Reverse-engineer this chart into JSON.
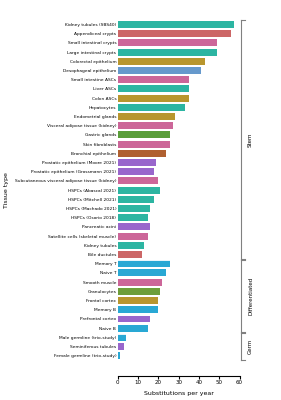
{
  "labels": [
    "Kidney tubules (SBS40)",
    "Appendiceal crypts",
    "Small intestinal crypts",
    "Large intestinal crypts",
    "Colorectal epithelium",
    "Desophageal epithelium",
    "Small intestine ASCs",
    "Liver ASCs",
    "Colon ASCs",
    "Hepatocytes",
    "Endometrial glands",
    "Visceral adipose tissue (kidney)",
    "Gastric glands",
    "Skin fibroblasts",
    "Bronchial epithelium",
    "Prostatic epithelium (Moore 2021)",
    "Prostatic epithelium (Grossmann 2021)",
    "Subcutaneous visceral adipose tissue (kidney)",
    "HSPCs (Abascal 2021)",
    "HSPCs (Mitchell 2021)",
    "HSPCs (Machado 2021)",
    "HSPCs (Osorio 2018)",
    "Pancreatic acini",
    "Satellite cells (skeletal muscle)",
    "Kidney tubules",
    "Bile ductules",
    "Memory T",
    "Naive T",
    "Smooth muscle",
    "Granulocytes",
    "Frontal cortex",
    "Memory B",
    "Prefrontal cortex",
    "Naive B",
    "Male germline (trio-study)",
    "Seminiferous tubules",
    "Female germline (trio-study)"
  ],
  "values": [
    57,
    56,
    49,
    49,
    43,
    41,
    35,
    35,
    35,
    33,
    28,
    27,
    26,
    26,
    24,
    19,
    18,
    20,
    21,
    18,
    16,
    15,
    16,
    15,
    13,
    12,
    26,
    24,
    22,
    21,
    20,
    20,
    16,
    15,
    4,
    3,
    1
  ],
  "colors": [
    "#2cb5a2",
    "#cc6666",
    "#cc6699",
    "#2cb5a2",
    "#b8962e",
    "#6699cc",
    "#cc6699",
    "#2cb5a2",
    "#b8962e",
    "#2cb5a2",
    "#b8962e",
    "#cc6699",
    "#5a9e3a",
    "#cc6699",
    "#b06030",
    "#9966cc",
    "#9966cc",
    "#cc6699",
    "#2cb5a2",
    "#2cb5a2",
    "#2cb5a2",
    "#2cb5a2",
    "#9966cc",
    "#cc6699",
    "#2cb5a2",
    "#cc6666",
    "#29a8d4",
    "#29a8d4",
    "#cc6699",
    "#6d9e3a",
    "#b8962e",
    "#29a8d4",
    "#9966cc",
    "#29a8d4",
    "#29a8d4",
    "#9966cc",
    "#29a8d4"
  ],
  "section_labels": [
    "Stem",
    "Differentiated",
    "Germ"
  ],
  "section_ranges": [
    [
      0,
      25
    ],
    [
      26,
      33
    ],
    [
      34,
      36
    ]
  ],
  "xlabel": "Substitutions per year",
  "ylabel": "Tissue type",
  "xlim": [
    0,
    60
  ],
  "xticks": [
    0,
    10,
    20,
    30,
    40,
    50,
    60
  ],
  "bg_color": "#ffffff"
}
